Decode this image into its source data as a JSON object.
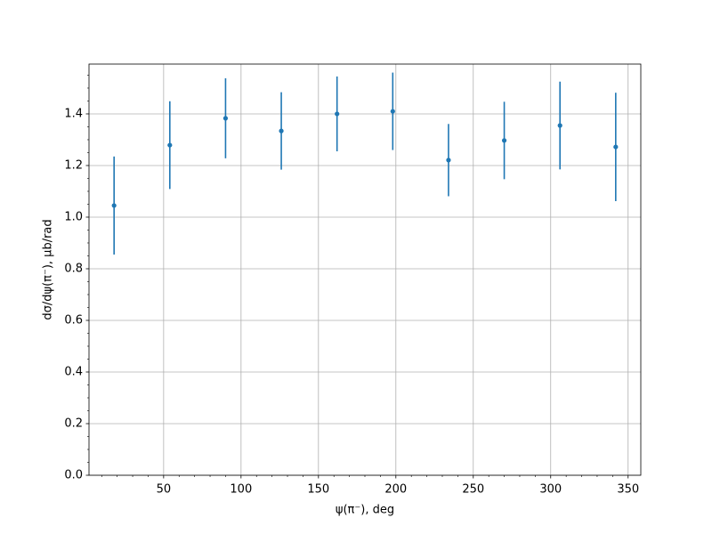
{
  "chart_data": {
    "type": "errorbar",
    "xlabel": "ψ(π⁻), deg",
    "ylabel": "dσ/dψ(π⁻), μb/rad",
    "x": [
      18,
      54,
      90,
      126,
      162,
      198,
      234,
      270,
      306,
      342
    ],
    "values": [
      1.045,
      1.279,
      1.383,
      1.334,
      1.4,
      1.41,
      1.221,
      1.297,
      1.355,
      1.272
    ],
    "errors": [
      0.19,
      0.17,
      0.155,
      0.15,
      0.145,
      0.15,
      0.14,
      0.15,
      0.17,
      0.21
    ],
    "color": "#1f77b4",
    "xlim": [
      1.8,
      358.2
    ],
    "ylim": [
      0,
      1.593
    ],
    "xticks": [
      50,
      100,
      150,
      200,
      250,
      300,
      350
    ],
    "yticks": [
      {
        "value": 0,
        "label": "0.0"
      },
      {
        "value": 0.2,
        "label": "0.2"
      },
      {
        "value": 0.4,
        "label": "0.4"
      },
      {
        "value": 0.6,
        "label": "0.6"
      },
      {
        "value": 0.8,
        "label": "0.8"
      },
      {
        "value": 1.0,
        "label": "1.0"
      },
      {
        "value": 1.2,
        "label": "1.2"
      },
      {
        "value": 1.4,
        "label": "1.4"
      }
    ],
    "xminorticks": [
      10,
      20,
      30,
      40,
      60,
      70,
      80,
      90,
      110,
      120,
      130,
      140,
      160,
      170,
      180,
      190,
      210,
      220,
      230,
      240,
      260,
      270,
      280,
      290,
      310,
      320,
      330,
      340
    ],
    "yminorticks": [
      0.05,
      0.1,
      0.15,
      0.25,
      0.3,
      0.35,
      0.45,
      0.5,
      0.55,
      0.65,
      0.7,
      0.75,
      0.85,
      0.9,
      0.95,
      1.05,
      1.1,
      1.15,
      1.25,
      1.3,
      1.35,
      1.45,
      1.5,
      1.55
    ],
    "grid": true
  }
}
